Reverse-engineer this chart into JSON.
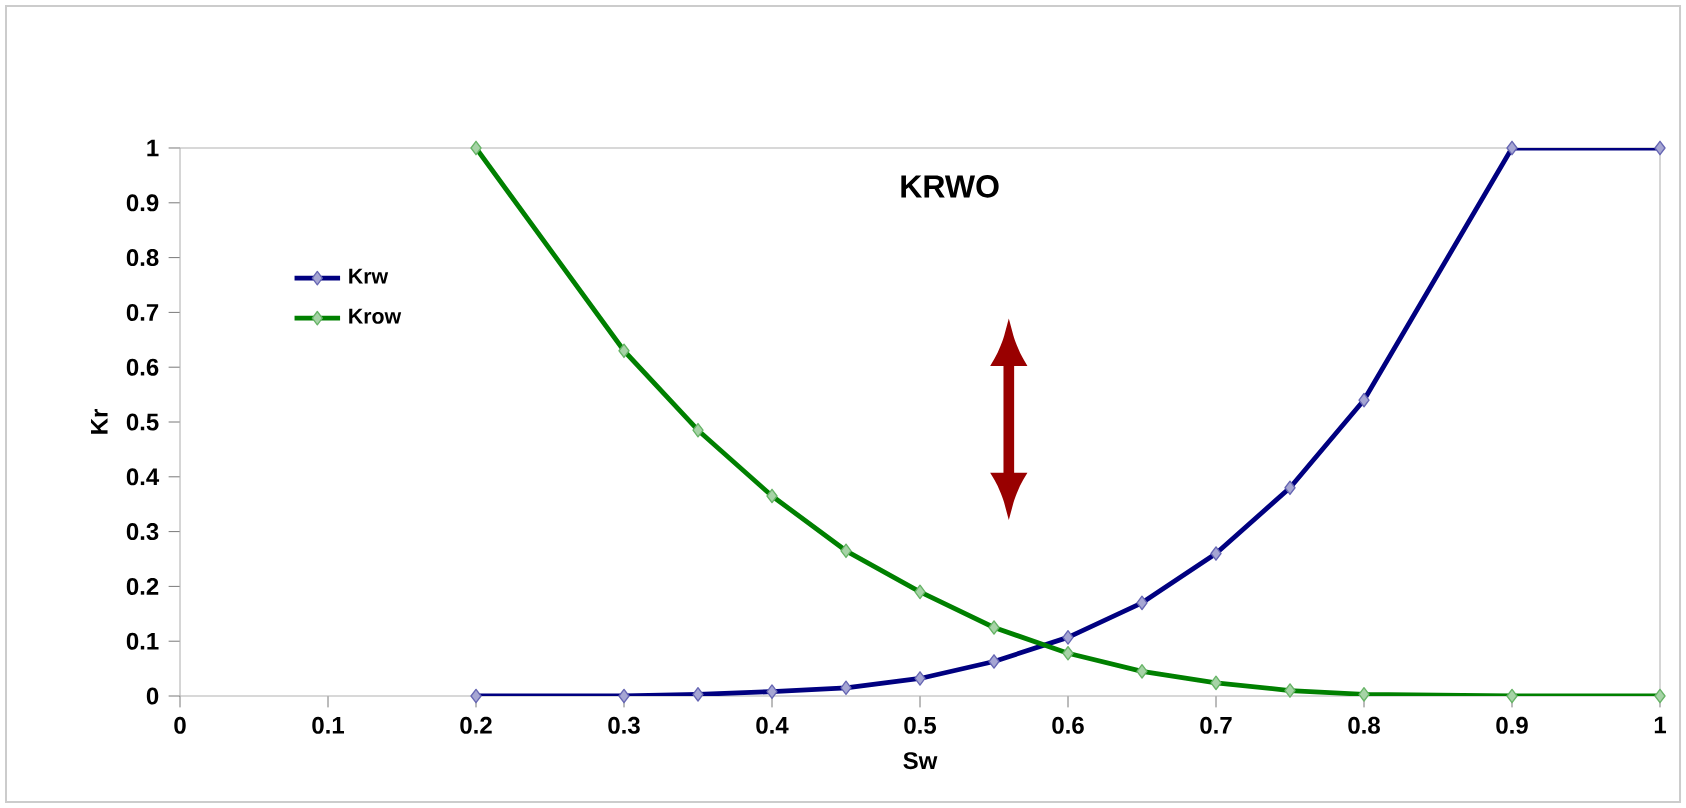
{
  "chart_data": {
    "type": "line",
    "title": "KRWO",
    "xlabel": "Sw",
    "ylabel": "Kr",
    "xlim": [
      0,
      1
    ],
    "ylim": [
      0,
      1
    ],
    "xticks": [
      0,
      0.1,
      0.2,
      0.3,
      0.4,
      0.5,
      0.6,
      0.7,
      0.8,
      0.9,
      1
    ],
    "yticks": [
      0,
      0.1,
      0.2,
      0.3,
      0.4,
      0.5,
      0.6,
      0.7,
      0.8,
      0.9,
      1
    ],
    "x": [
      0.2,
      0.3,
      0.35,
      0.4,
      0.45,
      0.5,
      0.55,
      0.6,
      0.65,
      0.7,
      0.75,
      0.8,
      0.9,
      1
    ],
    "series": [
      {
        "name": "Krw",
        "color": "#000080",
        "values": [
          0,
          0,
          0.003,
          0.008,
          0.015,
          0.032,
          0.063,
          0.107,
          0.17,
          0.26,
          0.38,
          0.54,
          1,
          1
        ]
      },
      {
        "name": "Krow",
        "color": "#008000",
        "values": [
          1,
          0.63,
          0.485,
          0.365,
          0.265,
          0.19,
          0.125,
          0.078,
          0.045,
          0.024,
          0.01,
          0.003,
          0,
          0
        ]
      }
    ],
    "marker": "diamond",
    "line_style": "solid",
    "legend": "top left",
    "grid": false
  }
}
